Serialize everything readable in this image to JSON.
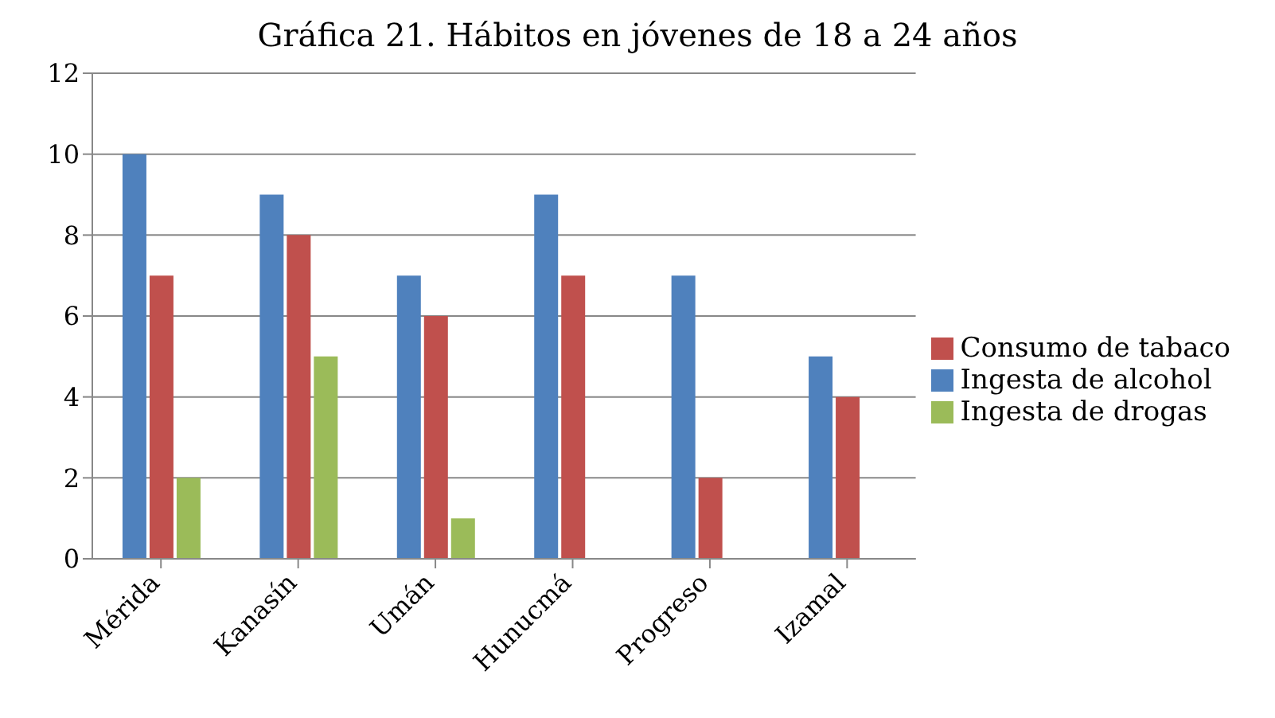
{
  "chart_data": {
    "type": "bar",
    "title": "Gráfica 21. Hábitos en jóvenes de 18 a 24 años",
    "categories": [
      "Mérida",
      "Kanasín",
      "Umán",
      "Hunucmá",
      "Progreso",
      "Izamal"
    ],
    "series": [
      {
        "name": "Ingesta de alcohol",
        "color": "#4f81bd",
        "values": [
          10,
          9,
          7,
          9,
          7,
          5
        ]
      },
      {
        "name": "Consumo de tabaco",
        "color": "#c0504d",
        "values": [
          7,
          8,
          6,
          7,
          2,
          4
        ]
      },
      {
        "name": "Ingesta de drogas",
        "color": "#9bbb59",
        "values": [
          2,
          5,
          1,
          0,
          0,
          0
        ]
      }
    ],
    "ylim": [
      0,
      12
    ],
    "yticks": [
      0,
      2,
      4,
      6,
      8,
      10,
      12
    ],
    "grid": "y",
    "legend": "right"
  }
}
